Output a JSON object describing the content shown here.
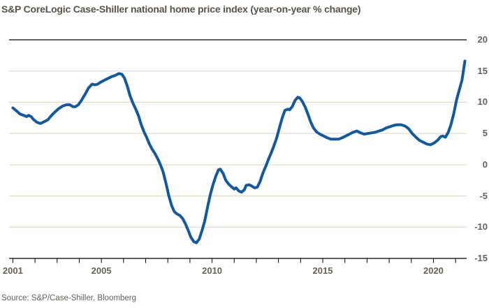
{
  "title": "S&P CoreLogic Case-Shiller national home price index (year-on-year % change)",
  "source": "Source: S&P/Case-Shiller, Bloomberg",
  "colors": {
    "line": "#13599f",
    "grid": "#e6dbc9",
    "axis": "#000000",
    "tick_text": "#66605c",
    "background": "#ffffff"
  },
  "chart_data": {
    "type": "line",
    "title": "S&P CoreLogic Case-Shiller national home price index (year-on-year % change)",
    "xlabel": "",
    "ylabel": "",
    "legend": "none",
    "grid": "horizontal",
    "x_domain": [
      2000.83,
      2021.5
    ],
    "y_domain": [
      -15,
      20
    ],
    "y_ticks": [
      20,
      15,
      10,
      5,
      0,
      -5,
      -10,
      -15
    ],
    "y_tick_labels": [
      "20",
      "15",
      "10",
      "5",
      "0",
      "-5",
      "-10",
      "-15"
    ],
    "x_tick_years": [
      2001,
      2002,
      2003,
      2004,
      2005,
      2006,
      2007,
      2008,
      2009,
      2010,
      2011,
      2012,
      2013,
      2014,
      2015,
      2016,
      2017,
      2018,
      2019,
      2020,
      2021
    ],
    "x_labels": [
      {
        "year": 2001,
        "label": "2001"
      },
      {
        "year": 2005,
        "label": "2005"
      },
      {
        "year": 2010,
        "label": "2010"
      },
      {
        "year": 2015,
        "label": "2015"
      },
      {
        "year": 2020,
        "label": "2020"
      }
    ],
    "series": [
      {
        "name": "Case-Shiller national home price index (year-on-year % change)",
        "points": [
          [
            2001.0,
            9.1
          ],
          [
            2001.17,
            8.6
          ],
          [
            2001.33,
            8.1
          ],
          [
            2001.5,
            7.9
          ],
          [
            2001.62,
            7.7
          ],
          [
            2001.71,
            7.9
          ],
          [
            2001.83,
            7.7
          ],
          [
            2001.92,
            7.3
          ],
          [
            2002.08,
            6.8
          ],
          [
            2002.25,
            6.6
          ],
          [
            2002.42,
            6.9
          ],
          [
            2002.58,
            7.2
          ],
          [
            2002.75,
            7.9
          ],
          [
            2002.92,
            8.5
          ],
          [
            2003.08,
            9.0
          ],
          [
            2003.25,
            9.4
          ],
          [
            2003.42,
            9.6
          ],
          [
            2003.58,
            9.6
          ],
          [
            2003.71,
            9.3
          ],
          [
            2003.83,
            9.3
          ],
          [
            2003.96,
            9.6
          ],
          [
            2004.08,
            10.2
          ],
          [
            2004.25,
            11.2
          ],
          [
            2004.42,
            12.3
          ],
          [
            2004.58,
            12.9
          ],
          [
            2004.71,
            12.8
          ],
          [
            2004.83,
            12.9
          ],
          [
            2004.96,
            13.2
          ],
          [
            2005.12,
            13.5
          ],
          [
            2005.29,
            13.8
          ],
          [
            2005.46,
            14.1
          ],
          [
            2005.62,
            14.3
          ],
          [
            2005.79,
            14.6
          ],
          [
            2005.92,
            14.5
          ],
          [
            2006.04,
            13.9
          ],
          [
            2006.17,
            12.6
          ],
          [
            2006.29,
            11.1
          ],
          [
            2006.42,
            9.9
          ],
          [
            2006.54,
            9.0
          ],
          [
            2006.67,
            7.9
          ],
          [
            2006.79,
            6.5
          ],
          [
            2006.92,
            5.3
          ],
          [
            2007.04,
            4.4
          ],
          [
            2007.17,
            3.3
          ],
          [
            2007.29,
            2.5
          ],
          [
            2007.42,
            1.8
          ],
          [
            2007.54,
            1.0
          ],
          [
            2007.67,
            0.0
          ],
          [
            2007.79,
            -1.2
          ],
          [
            2007.92,
            -3.0
          ],
          [
            2008.04,
            -4.9
          ],
          [
            2008.17,
            -6.5
          ],
          [
            2008.29,
            -7.5
          ],
          [
            2008.42,
            -7.9
          ],
          [
            2008.54,
            -8.1
          ],
          [
            2008.67,
            -8.6
          ],
          [
            2008.79,
            -9.4
          ],
          [
            2008.92,
            -10.5
          ],
          [
            2009.04,
            -11.6
          ],
          [
            2009.17,
            -12.3
          ],
          [
            2009.29,
            -12.5
          ],
          [
            2009.42,
            -11.9
          ],
          [
            2009.54,
            -10.6
          ],
          [
            2009.67,
            -9.0
          ],
          [
            2009.79,
            -6.9
          ],
          [
            2009.92,
            -4.8
          ],
          [
            2010.04,
            -3.2
          ],
          [
            2010.17,
            -1.8
          ],
          [
            2010.29,
            -0.8
          ],
          [
            2010.37,
            -0.7
          ],
          [
            2010.5,
            -1.4
          ],
          [
            2010.62,
            -2.5
          ],
          [
            2010.75,
            -3.1
          ],
          [
            2010.87,
            -3.5
          ],
          [
            2011.0,
            -3.9
          ],
          [
            2011.08,
            -3.7
          ],
          [
            2011.21,
            -4.2
          ],
          [
            2011.33,
            -4.4
          ],
          [
            2011.46,
            -4.0
          ],
          [
            2011.54,
            -3.3
          ],
          [
            2011.67,
            -3.2
          ],
          [
            2011.79,
            -3.4
          ],
          [
            2011.92,
            -3.7
          ],
          [
            2012.04,
            -3.6
          ],
          [
            2012.17,
            -2.7
          ],
          [
            2012.29,
            -1.4
          ],
          [
            2012.42,
            -0.3
          ],
          [
            2012.54,
            0.8
          ],
          [
            2012.67,
            1.9
          ],
          [
            2012.79,
            3.0
          ],
          [
            2012.92,
            4.3
          ],
          [
            2013.04,
            5.9
          ],
          [
            2013.17,
            7.5
          ],
          [
            2013.29,
            8.7
          ],
          [
            2013.42,
            8.9
          ],
          [
            2013.5,
            8.8
          ],
          [
            2013.62,
            9.3
          ],
          [
            2013.75,
            10.3
          ],
          [
            2013.87,
            10.8
          ],
          [
            2013.96,
            10.7
          ],
          [
            2014.08,
            10.1
          ],
          [
            2014.21,
            9.2
          ],
          [
            2014.33,
            8.1
          ],
          [
            2014.46,
            6.8
          ],
          [
            2014.58,
            5.9
          ],
          [
            2014.71,
            5.3
          ],
          [
            2014.87,
            4.9
          ],
          [
            2015.04,
            4.6
          ],
          [
            2015.21,
            4.3
          ],
          [
            2015.37,
            4.1
          ],
          [
            2015.54,
            4.1
          ],
          [
            2015.71,
            4.1
          ],
          [
            2015.87,
            4.3
          ],
          [
            2016.04,
            4.6
          ],
          [
            2016.21,
            4.9
          ],
          [
            2016.37,
            5.2
          ],
          [
            2016.54,
            5.4
          ],
          [
            2016.71,
            5.1
          ],
          [
            2016.87,
            4.9
          ],
          [
            2017.04,
            5.0
          ],
          [
            2017.21,
            5.1
          ],
          [
            2017.37,
            5.2
          ],
          [
            2017.54,
            5.4
          ],
          [
            2017.71,
            5.6
          ],
          [
            2017.87,
            5.9
          ],
          [
            2018.04,
            6.1
          ],
          [
            2018.21,
            6.3
          ],
          [
            2018.37,
            6.4
          ],
          [
            2018.54,
            6.4
          ],
          [
            2018.71,
            6.2
          ],
          [
            2018.87,
            5.8
          ],
          [
            2019.04,
            5.0
          ],
          [
            2019.21,
            4.4
          ],
          [
            2019.37,
            3.9
          ],
          [
            2019.54,
            3.6
          ],
          [
            2019.71,
            3.3
          ],
          [
            2019.87,
            3.2
          ],
          [
            2020.04,
            3.5
          ],
          [
            2020.21,
            4.0
          ],
          [
            2020.33,
            4.5
          ],
          [
            2020.42,
            4.6
          ],
          [
            2020.54,
            4.4
          ],
          [
            2020.67,
            5.2
          ],
          [
            2020.79,
            6.4
          ],
          [
            2020.92,
            8.2
          ],
          [
            2021.04,
            10.3
          ],
          [
            2021.17,
            12.0
          ],
          [
            2021.29,
            13.5
          ],
          [
            2021.42,
            16.6
          ]
        ]
      }
    ]
  }
}
